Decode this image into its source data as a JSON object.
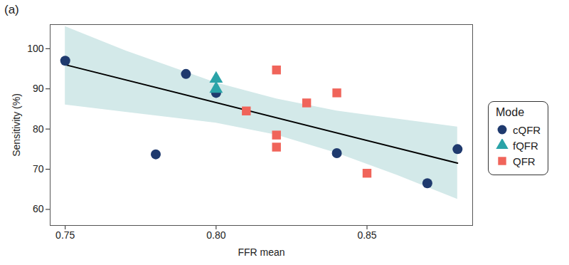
{
  "chart_data": {
    "type": "scatter",
    "title": "(a)",
    "x_label": "FFR mean",
    "y_label": "Sensitivity (%)",
    "legend_title": "Mode",
    "legend": "right",
    "xlim": [
      0.745,
      0.885
    ],
    "ylim": [
      56,
      106
    ],
    "xticks": [
      0.75,
      {
        "value": 0.8,
        "label": "0.80"
      },
      0.85
    ],
    "yticks": [
      60,
      70,
      80,
      90,
      100
    ],
    "grid": false,
    "series": [
      {
        "name": "cQFR",
        "color": "#1f3a6e",
        "marker": "circle",
        "x": [
          0.75,
          0.78,
          0.79,
          0.8,
          0.84,
          0.87,
          0.88
        ],
        "values": [
          97,
          73.7,
          93.7,
          89,
          74,
          66.5,
          75
        ]
      },
      {
        "name": "fQFR",
        "color": "#2aa3a8",
        "marker": "triangle",
        "x": [
          0.8,
          0.8
        ],
        "values": [
          92.5,
          90
        ]
      },
      {
        "name": "QFR",
        "color": "#f0645a",
        "marker": "square",
        "x": [
          0.81,
          0.82,
          0.82,
          0.82,
          0.83,
          0.84,
          0.85
        ],
        "values": [
          84.5,
          94.7,
          78.5,
          75.5,
          86.5,
          89,
          69
        ]
      }
    ],
    "fit": {
      "color": "#000000",
      "x": [
        0.75,
        0.88
      ],
      "values": [
        96,
        71.5
      ]
    },
    "confidence_band": {
      "color": "#d3e9e9",
      "x": [
        0.75,
        0.77,
        0.8,
        0.82,
        0.84,
        0.86,
        0.88
      ],
      "lower": [
        86,
        84.2,
        81.5,
        78.5,
        74,
        68.5,
        62.5
      ],
      "upper": [
        105.5,
        99.5,
        91.5,
        87.5,
        84.5,
        82.5,
        80.5
      ]
    }
  }
}
